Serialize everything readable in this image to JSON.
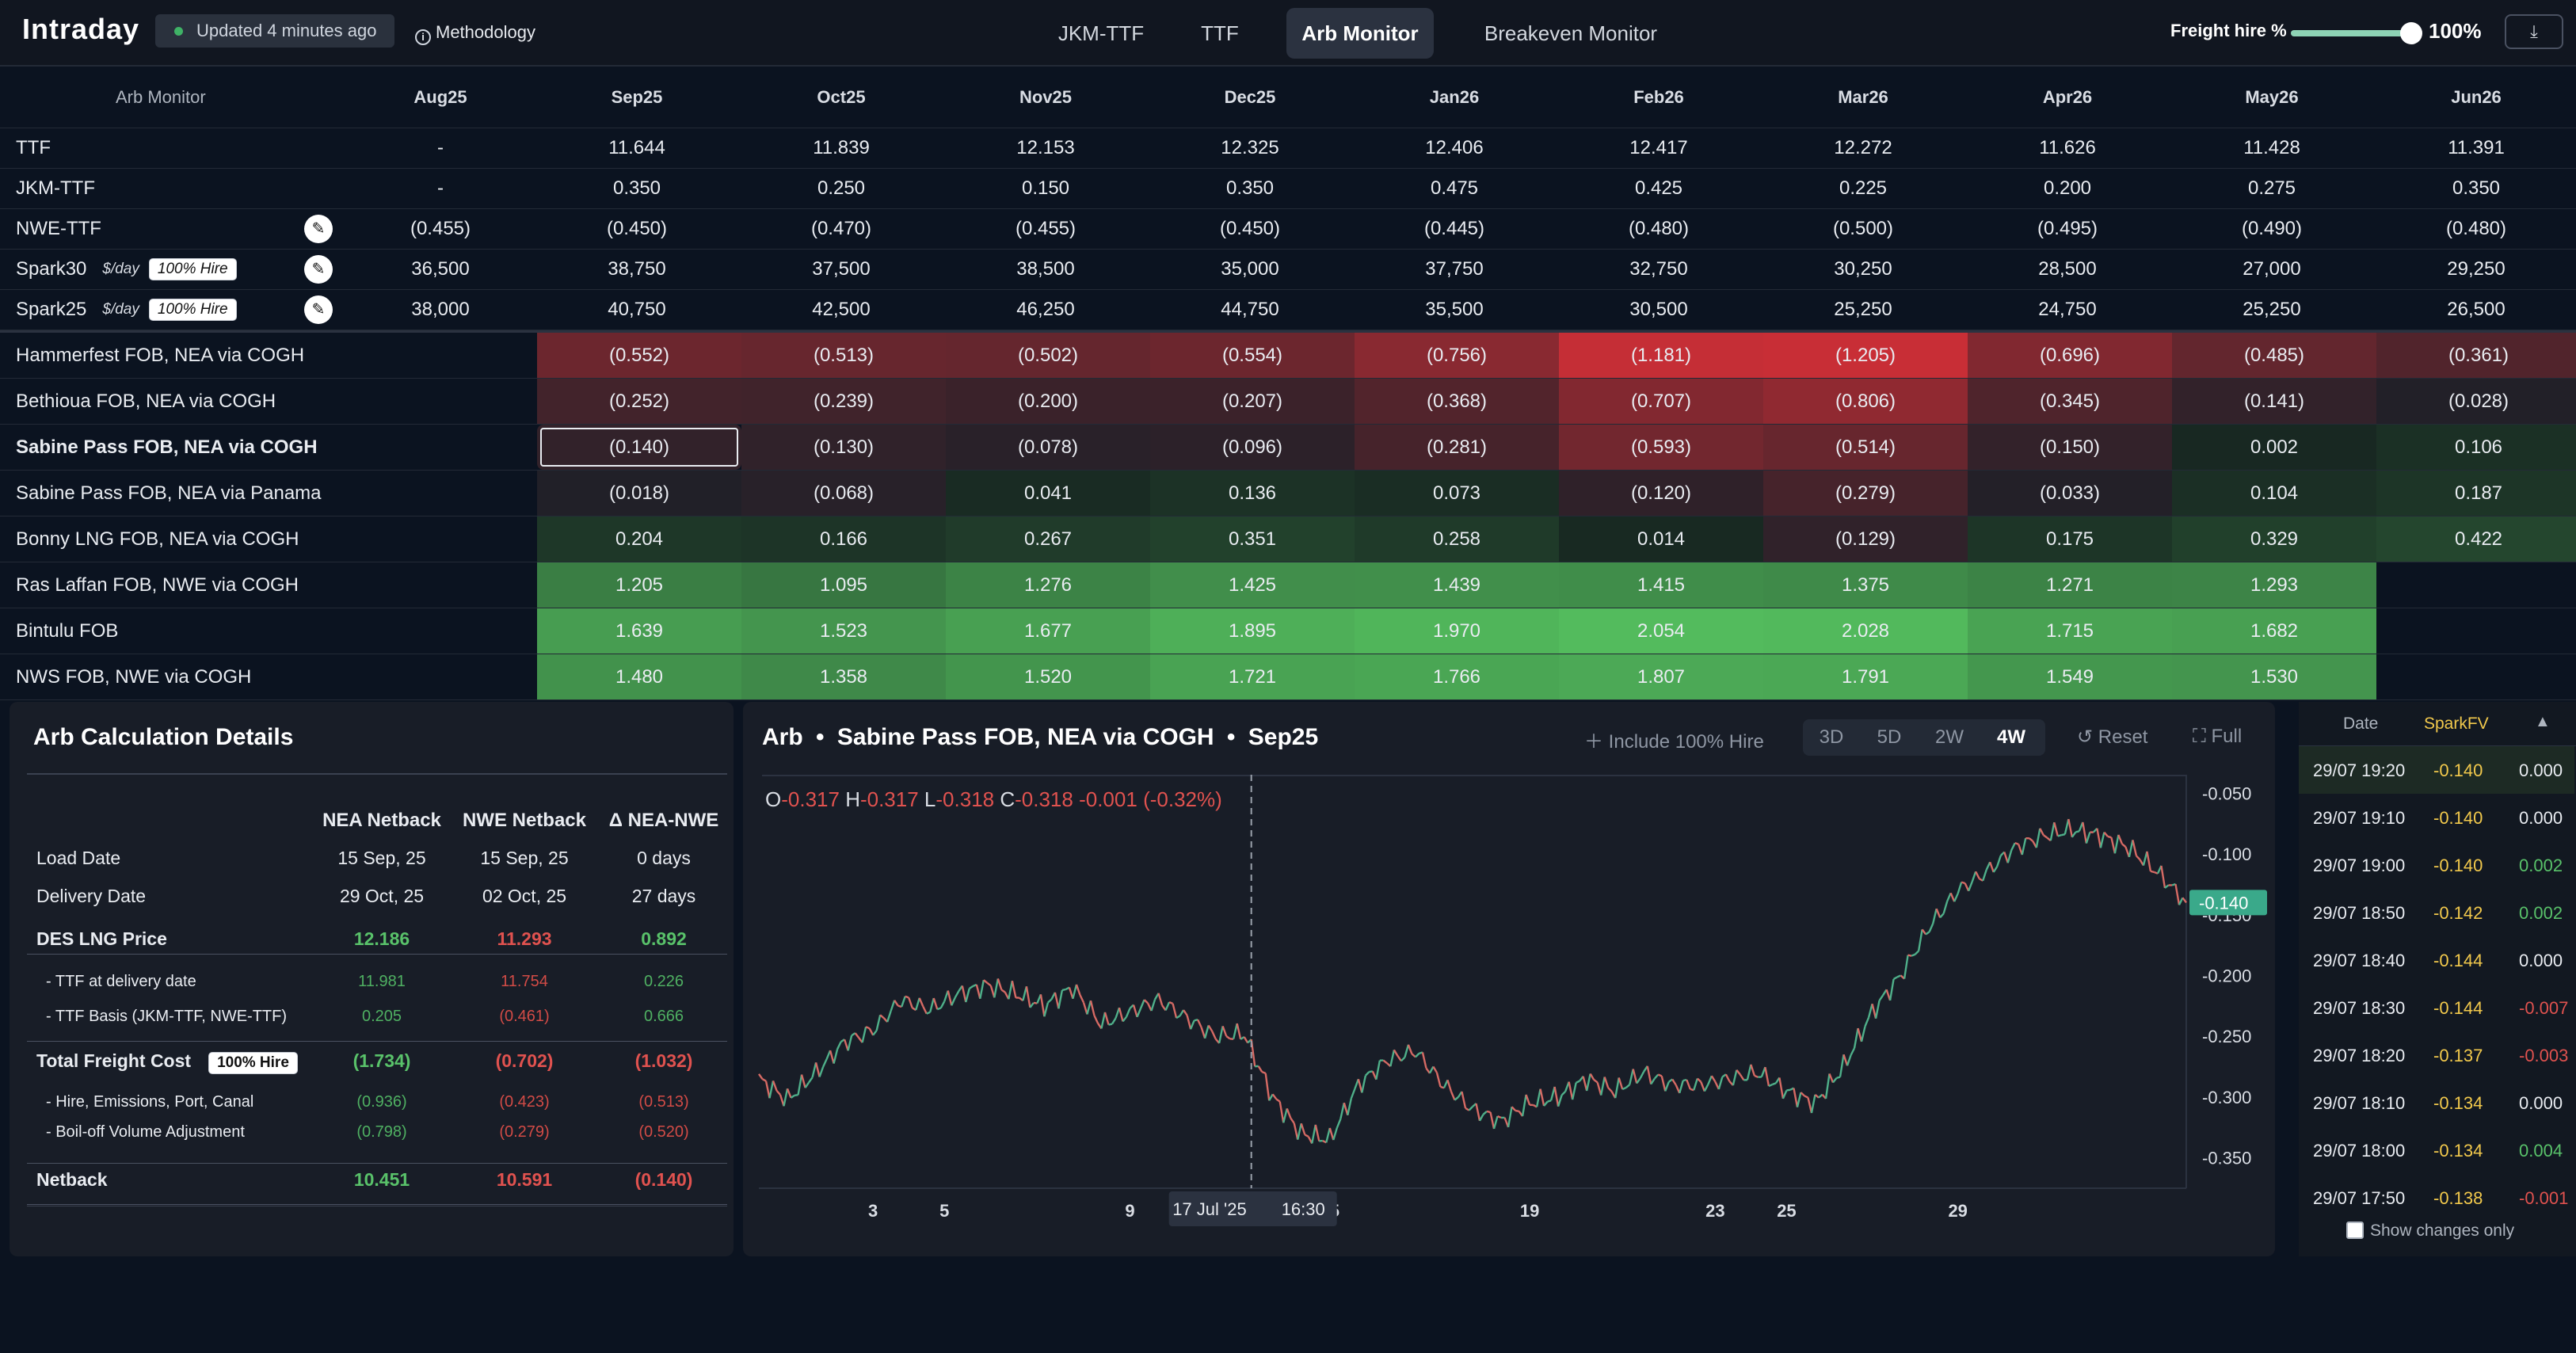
{
  "header": {
    "brand": "Intraday",
    "updated": "Updated 4 minutes ago",
    "methodology": "Methodology",
    "tabs": [
      {
        "label": "JKM-TTF",
        "active": false
      },
      {
        "label": "TTF",
        "active": false
      },
      {
        "label": "Arb Monitor",
        "active": true
      },
      {
        "label": "Breakeven Monitor",
        "active": false
      }
    ],
    "freight_label": "Freight hire %",
    "freight_value": "100%",
    "freight_fraction": 1.0
  },
  "grid": {
    "corner": "Arb Monitor",
    "months": [
      "Aug25",
      "Sep25",
      "Oct25",
      "Nov25",
      "Dec25",
      "Jan26",
      "Feb26",
      "Mar26",
      "Apr26",
      "May26",
      "Jun26"
    ],
    "inputs": [
      {
        "label": "TTF",
        "values": [
          "-",
          "11.644",
          "11.839",
          "12.153",
          "12.325",
          "12.406",
          "12.417",
          "12.272",
          "11.626",
          "11.428",
          "11.391"
        ]
      },
      {
        "label": "JKM-TTF",
        "values": [
          "-",
          "0.350",
          "0.250",
          "0.150",
          "0.350",
          "0.475",
          "0.425",
          "0.225",
          "0.200",
          "0.275",
          "0.350"
        ]
      },
      {
        "label": "NWE-TTF",
        "edit": true,
        "values": [
          "(0.455)",
          "(0.450)",
          "(0.470)",
          "(0.455)",
          "(0.450)",
          "(0.445)",
          "(0.480)",
          "(0.500)",
          "(0.495)",
          "(0.490)",
          "(0.480)"
        ]
      },
      {
        "label": "Spark30",
        "unit": "$/day",
        "badge": "100% Hire",
        "edit": true,
        "values": [
          "36,500",
          "38,750",
          "37,500",
          "38,500",
          "35,000",
          "37,750",
          "32,750",
          "30,250",
          "28,500",
          "27,000",
          "29,250"
        ]
      },
      {
        "label": "Spark25",
        "unit": "$/day",
        "badge": "100% Hire",
        "edit": true,
        "values": [
          "38,000",
          "40,750",
          "42,500",
          "46,250",
          "44,750",
          "35,500",
          "30,500",
          "25,250",
          "24,750",
          "25,250",
          "26,500"
        ]
      }
    ],
    "arbs": [
      {
        "label": "Hammerfest FOB, NEA via COGH",
        "values": [
          -0.552,
          -0.513,
          -0.502,
          -0.554,
          -0.756,
          -1.181,
          -1.205,
          -0.696,
          -0.485,
          -0.361
        ],
        "display": [
          "(0.552)",
          "(0.513)",
          "(0.502)",
          "(0.554)",
          "(0.756)",
          "(1.181)",
          "(1.205)",
          "(0.696)",
          "(0.485)",
          "(0.361)"
        ]
      },
      {
        "label": "Bethioua FOB, NEA via COGH",
        "values": [
          -0.252,
          -0.239,
          -0.2,
          -0.207,
          -0.368,
          -0.707,
          -0.806,
          -0.345,
          -0.141,
          -0.028
        ],
        "display": [
          "(0.252)",
          "(0.239)",
          "(0.200)",
          "(0.207)",
          "(0.368)",
          "(0.707)",
          "(0.806)",
          "(0.345)",
          "(0.141)",
          "(0.028)"
        ]
      },
      {
        "label": "Sabine Pass FOB, NEA via COGH",
        "selected": true,
        "values": [
          -0.14,
          -0.13,
          -0.078,
          -0.096,
          -0.281,
          -0.593,
          -0.514,
          -0.15,
          0.002,
          0.106
        ],
        "display": [
          "(0.140)",
          "(0.130)",
          "(0.078)",
          "(0.096)",
          "(0.281)",
          "(0.593)",
          "(0.514)",
          "(0.150)",
          "0.002",
          "0.106"
        ]
      },
      {
        "label": "Sabine Pass FOB, NEA via Panama",
        "values": [
          -0.018,
          -0.068,
          0.041,
          0.136,
          0.073,
          -0.12,
          -0.279,
          -0.033,
          0.104,
          0.187
        ],
        "display": [
          "(0.018)",
          "(0.068)",
          "0.041",
          "0.136",
          "0.073",
          "(0.120)",
          "(0.279)",
          "(0.033)",
          "0.104",
          "0.187"
        ]
      },
      {
        "label": "Bonny LNG FOB, NEA via COGH",
        "values": [
          0.204,
          0.166,
          0.267,
          0.351,
          0.258,
          0.014,
          -0.129,
          0.175,
          0.329,
          0.422
        ],
        "display": [
          "0.204",
          "0.166",
          "0.267",
          "0.351",
          "0.258",
          "0.014",
          "(0.129)",
          "0.175",
          "0.329",
          "0.422"
        ]
      },
      {
        "label": "Ras Laffan FOB, NWE via COGH",
        "values": [
          1.205,
          1.095,
          1.276,
          1.425,
          1.439,
          1.415,
          1.375,
          1.271,
          1.293,
          null
        ],
        "display": [
          "1.205",
          "1.095",
          "1.276",
          "1.425",
          "1.439",
          "1.415",
          "1.375",
          "1.271",
          "1.293",
          ""
        ]
      },
      {
        "label": "Bintulu FOB",
        "values": [
          1.639,
          1.523,
          1.677,
          1.895,
          1.97,
          2.054,
          2.028,
          1.715,
          1.682,
          null
        ],
        "display": [
          "1.639",
          "1.523",
          "1.677",
          "1.895",
          "1.970",
          "2.054",
          "2.028",
          "1.715",
          "1.682",
          ""
        ]
      },
      {
        "label": "NWS FOB, NWE via COGH",
        "values": [
          1.48,
          1.358,
          1.52,
          1.721,
          1.766,
          1.807,
          1.791,
          1.549,
          1.53,
          null
        ],
        "display": [
          "1.480",
          "1.358",
          "1.520",
          "1.721",
          "1.766",
          "1.807",
          "1.791",
          "1.549",
          "1.530",
          ""
        ]
      }
    ]
  },
  "calc": {
    "title": "Arb Calculation Details",
    "cols": [
      "NEA Netback",
      "NWE Netback",
      "Δ NEA-NWE"
    ],
    "rows": [
      {
        "k": "Load Date",
        "v": [
          "15 Sep, 25",
          "15 Sep, 25",
          "0 days"
        ],
        "style": "plain"
      },
      {
        "k": "Delivery Date",
        "v": [
          "29 Oct, 25",
          "02 Oct, 25",
          "27 days"
        ],
        "style": "plain"
      },
      {
        "k": "DES LNG Price",
        "v": [
          "12.186",
          "11.293",
          "0.892"
        ],
        "style": "main"
      },
      {
        "k": "- TTF at delivery date",
        "v": [
          "11.981",
          "11.754",
          "0.226"
        ],
        "style": "sub"
      },
      {
        "k": "- TTF Basis (JKM-TTF, NWE-TTF)",
        "v": [
          "0.205",
          "(0.461)",
          "0.666"
        ],
        "style": "sub"
      },
      {
        "k": "Total Freight Cost",
        "badge": "100% Hire",
        "v": [
          "(1.734)",
          "(0.702)",
          "(1.032)"
        ],
        "style": "main"
      },
      {
        "k": "- Hire, Emissions, Port, Canal",
        "v": [
          "(0.936)",
          "(0.423)",
          "(0.513)"
        ],
        "style": "sub"
      },
      {
        "k": "- Boil-off Volume Adjustment",
        "v": [
          "(0.798)",
          "(0.279)",
          "(0.520)"
        ],
        "style": "sub"
      },
      {
        "k": "Netback",
        "v": [
          "10.451",
          "10.591",
          "(0.140)"
        ],
        "style": "main"
      }
    ]
  },
  "chart": {
    "title_parts": [
      "Arb",
      "Sabine Pass FOB, NEA via COGH",
      "Sep25"
    ],
    "include_hire": "Include 100% Hire",
    "ranges": [
      {
        "label": "3D",
        "active": false
      },
      {
        "label": "5D",
        "active": false
      },
      {
        "label": "2W",
        "active": false
      },
      {
        "label": "4W",
        "active": true
      }
    ],
    "reset": "Reset",
    "full": "Full",
    "ohlc": {
      "o": "-0.317",
      "h": "-0.317",
      "l": "-0.318",
      "c": "-0.318",
      "chg": "-0.001",
      "pct": "(-0.32%)"
    },
    "last_price": "-0.140",
    "crosshair_date": "17 Jul '25",
    "crosshair_time": "16:30"
  },
  "chart_data": {
    "type": "line",
    "x_ticks": [
      "3",
      "5",
      "9",
      "11",
      "15",
      "19",
      "23",
      "25",
      "29"
    ],
    "y_ticks": [
      "-0.050",
      "-0.100",
      "-0.150",
      "-0.200",
      "-0.250",
      "-0.300",
      "-0.350"
    ],
    "ylim": [
      -0.375,
      -0.04
    ],
    "x": [
      0,
      2,
      4,
      6,
      8,
      10,
      12,
      14,
      16,
      18,
      20,
      22,
      24,
      26,
      28,
      30,
      32,
      34,
      36,
      38,
      40,
      42,
      44,
      46,
      48,
      50,
      52,
      54,
      56,
      58,
      60,
      62,
      64,
      66,
      68,
      70,
      72,
      74,
      76,
      78,
      80,
      82,
      84,
      86,
      88,
      90,
      92,
      94,
      96,
      98,
      100
    ],
    "values": [
      -0.285,
      -0.302,
      -0.28,
      -0.255,
      -0.245,
      -0.22,
      -0.228,
      -0.215,
      -0.208,
      -0.215,
      -0.225,
      -0.21,
      -0.24,
      -0.23,
      -0.22,
      -0.235,
      -0.25,
      -0.248,
      -0.3,
      -0.33,
      -0.335,
      -0.29,
      -0.27,
      -0.262,
      -0.29,
      -0.31,
      -0.32,
      -0.305,
      -0.3,
      -0.285,
      -0.295,
      -0.28,
      -0.29,
      -0.29,
      -0.285,
      -0.28,
      -0.295,
      -0.305,
      -0.275,
      -0.23,
      -0.2,
      -0.16,
      -0.13,
      -0.115,
      -0.095,
      -0.085,
      -0.08,
      -0.085,
      -0.095,
      -0.115,
      -0.14
    ]
  },
  "changes": {
    "headers": [
      "Date",
      "SparkFV"
    ],
    "rows": [
      {
        "date": "29/07 19:20",
        "val": "-0.140",
        "chg": "0.000",
        "dir": "flat"
      },
      {
        "date": "29/07 19:10",
        "val": "-0.140",
        "chg": "0.000",
        "dir": "flat"
      },
      {
        "date": "29/07 19:00",
        "val": "-0.140",
        "chg": "0.002",
        "dir": "up"
      },
      {
        "date": "29/07 18:50",
        "val": "-0.142",
        "chg": "0.002",
        "dir": "up"
      },
      {
        "date": "29/07 18:40",
        "val": "-0.144",
        "chg": "0.000",
        "dir": "flat"
      },
      {
        "date": "29/07 18:30",
        "val": "-0.144",
        "chg": "-0.007",
        "dir": "down"
      },
      {
        "date": "29/07 18:20",
        "val": "-0.137",
        "chg": "-0.003",
        "dir": "down"
      },
      {
        "date": "29/07 18:10",
        "val": "-0.134",
        "chg": "0.000",
        "dir": "flat"
      },
      {
        "date": "29/07 18:00",
        "val": "-0.134",
        "chg": "0.004",
        "dir": "up"
      },
      {
        "date": "29/07 17:50",
        "val": "-0.138",
        "chg": "-0.001",
        "dir": "down"
      }
    ],
    "show_changes_only": "Show changes only"
  },
  "colors": {
    "positive": "#59c26a",
    "negative": "#e0524f",
    "accent": "#f2c94c",
    "last_price_bg": "#3aa98a"
  }
}
